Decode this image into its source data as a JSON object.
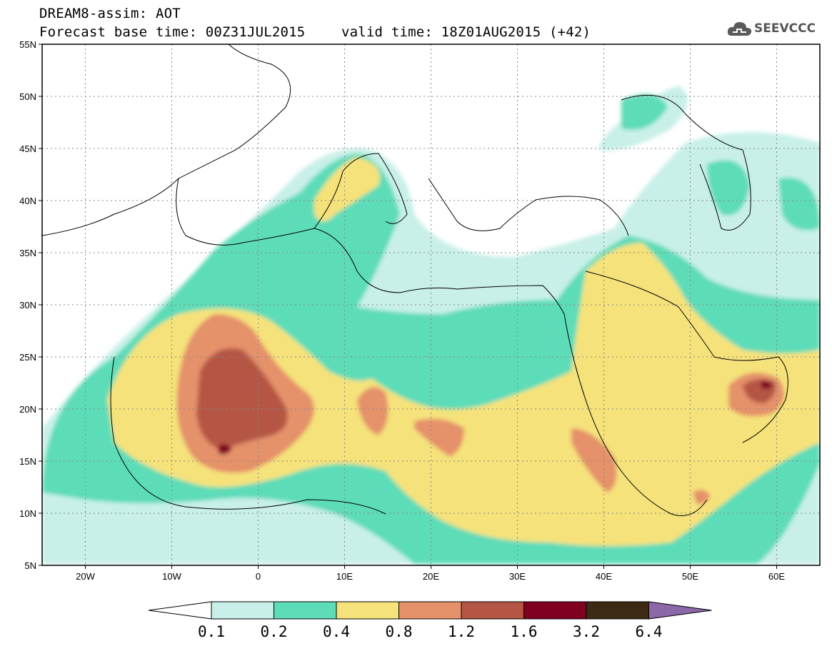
{
  "header": {
    "title": "DREAM8-assim: AOT",
    "base_time": "Forecast base time: 00Z31JUL2015",
    "valid_time": "valid time: 18Z01AUG2015 (+42)"
  },
  "logo": {
    "text": "SEEVCCC",
    "icon": "cloud-icon"
  },
  "map": {
    "projection": "lat-lon",
    "lon_range": [
      -25,
      65
    ],
    "lat_range": [
      5,
      55
    ],
    "lat_labels": [
      "55N",
      "50N",
      "45N",
      "40N",
      "35N",
      "30N",
      "25N",
      "20N",
      "15N",
      "10N",
      "5N"
    ],
    "lon_labels": [
      "20W",
      "10W",
      "0",
      "10E",
      "20E",
      "30E",
      "40E",
      "50E",
      "60E"
    ],
    "gridlines": "dotted",
    "field": "AOT"
  },
  "colorbar": {
    "labels": [
      "0.1",
      "0.2",
      "0.4",
      "0.8",
      "1.2",
      "1.6",
      "3.2",
      "6.4"
    ],
    "colors": [
      "#c8f0e8",
      "#5ddcb8",
      "#f5e27a",
      "#e5916a",
      "#b55645",
      "#800020",
      "#3d2a14",
      "#8c68a8"
    ],
    "under_color": "#ffffff",
    "over_color": "#8c68a8"
  }
}
